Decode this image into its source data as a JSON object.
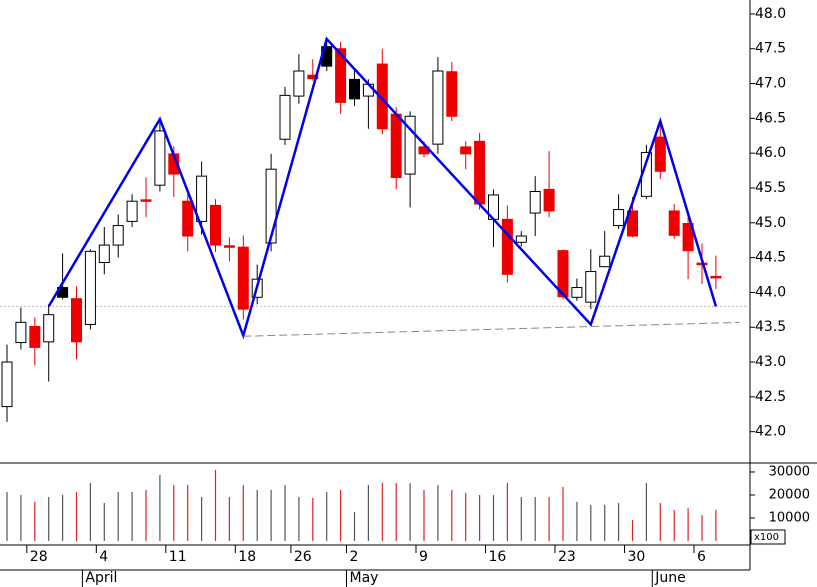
{
  "chart_data": {
    "type": "candlestick",
    "categories": [
      null,
      null,
      "28",
      null,
      null,
      null,
      null,
      "4",
      null,
      null,
      null,
      null,
      "11",
      null,
      null,
      null,
      null,
      "18",
      null,
      null,
      null,
      "26",
      null,
      null,
      null,
      "2",
      null,
      null,
      null,
      null,
      "9",
      null,
      null,
      null,
      null,
      "16",
      null,
      null,
      null,
      null,
      "23",
      null,
      null,
      null,
      null,
      "30",
      null,
      null,
      null,
      null,
      "6",
      null
    ],
    "months": [
      null,
      null,
      null,
      null,
      null,
      null,
      "April",
      null,
      null,
      null,
      null,
      null,
      null,
      null,
      null,
      null,
      null,
      null,
      null,
      null,
      null,
      null,
      null,
      null,
      null,
      "May",
      null,
      null,
      null,
      null,
      null,
      null,
      null,
      null,
      null,
      null,
      null,
      null,
      null,
      null,
      null,
      null,
      null,
      null,
      null,
      null,
      null,
      "June",
      null,
      null,
      null,
      null
    ],
    "open": [
      42.36,
      43.28,
      43.51,
      43.29,
      43.93,
      43.91,
      43.54,
      44.43,
      44.68,
      45.02,
      45.33,
      45.54,
      45.99,
      45.31,
      45.02,
      45.25,
      44.67,
      44.65,
      43.93,
      44.71,
      46.2,
      46.82,
      47.12,
      47.25,
      47.5,
      46.78,
      46.82,
      47.28,
      46.56,
      45.7,
      46.09,
      46.13,
      47.17,
      46.09,
      46.17,
      45.05,
      45.05,
      44.72,
      45.14,
      45.48,
      44.6,
      43.93,
      43.86,
      44.37,
      44.96,
      45.17,
      45.38,
      46.23,
      45.17,
      44.99,
      44.42,
      44.23
    ],
    "high": [
      43.25,
      43.78,
      43.64,
      43.83,
      44.56,
      44.09,
      44.62,
      44.94,
      45.12,
      45.41,
      45.65,
      46.49,
      46.1,
      45.41,
      45.88,
      45.34,
      44.79,
      44.82,
      44.4,
      45.99,
      46.95,
      47.42,
      47.35,
      47.64,
      47.6,
      47.18,
      47.06,
      47.5,
      46.66,
      46.6,
      46.17,
      47.38,
      47.31,
      46.17,
      46.29,
      45.48,
      45.25,
      44.88,
      45.67,
      46.03,
      44.62,
      44.2,
      44.62,
      44.88,
      45.41,
      45.37,
      46.12,
      46.42,
      45.27,
      45.08,
      44.7,
      44.53
    ],
    "low": [
      42.14,
      43.18,
      42.95,
      42.72,
      43.9,
      43.04,
      43.47,
      44.26,
      44.5,
      44.94,
      45.08,
      45.45,
      45.37,
      44.59,
      44.83,
      44.58,
      44.45,
      43.61,
      43.83,
      44.59,
      46.12,
      46.71,
      47.04,
      47.18,
      46.56,
      46.68,
      46.35,
      46.27,
      45.48,
      45.22,
      45.94,
      45.99,
      46.46,
      45.77,
      45.19,
      44.65,
      44.14,
      44.66,
      44.81,
      45.08,
      43.9,
      43.88,
      43.76,
      44.36,
      44.91,
      44.79,
      45.34,
      45.63,
      44.77,
      44.19,
      44.12,
      44.05
    ],
    "close": [
      43.0,
      43.57,
      43.21,
      43.68,
      44.07,
      43.29,
      44.59,
      44.68,
      44.96,
      45.31,
      45.32,
      46.32,
      45.7,
      44.81,
      45.67,
      44.68,
      44.66,
      43.76,
      44.19,
      45.77,
      46.83,
      47.18,
      47.07,
      47.53,
      46.73,
      47.06,
      46.99,
      46.35,
      45.65,
      46.53,
      45.99,
      47.18,
      46.53,
      45.99,
      45.27,
      45.4,
      44.26,
      44.81,
      45.45,
      45.17,
      43.94,
      44.07,
      44.3,
      44.52,
      45.19,
      44.81,
      46.01,
      45.74,
      44.82,
      44.6,
      44.4,
      44.21
    ],
    "fills": [
      "#ffffff",
      "#ffffff",
      "#ee0000",
      "#ffffff",
      "#000000",
      "#ee0000",
      "#ffffff",
      "#ffffff",
      "#ffffff",
      "#ffffff",
      "#ee0000",
      "#ffffff",
      "#ee0000",
      "#ee0000",
      "#ffffff",
      "#ee0000",
      "#ee0000",
      "#ee0000",
      "#ffffff",
      "#ffffff",
      "#ffffff",
      "#ffffff",
      "#ee0000",
      "#000000",
      "#ee0000",
      "#000000",
      "#ffffff",
      "#ee0000",
      "#ee0000",
      "#ffffff",
      "#ee0000",
      "#ffffff",
      "#ee0000",
      "#ee0000",
      "#ee0000",
      "#ffffff",
      "#ee0000",
      "#ffffff",
      "#ffffff",
      "#ee0000",
      "#ee0000",
      "#ffffff",
      "#ffffff",
      "#ffffff",
      "#ffffff",
      "#ee0000",
      "#ffffff",
      "#ee0000",
      "#ee0000",
      "#ee0000",
      "#ee0000",
      "#ee0000"
    ],
    "ylim": [
      41.55,
      48.2
    ],
    "yticks": [
      {
        "value": 42,
        "label": "42.0"
      },
      42.5,
      {
        "value": 43,
        "label": "43.0"
      },
      43.5,
      {
        "value": 44,
        "label": "44.0"
      },
      44.5,
      {
        "value": 45,
        "label": "45.0"
      },
      45.5,
      {
        "value": 46,
        "label": "46.0"
      },
      46.5,
      {
        "value": 47,
        "label": "47.0"
      },
      47.5,
      {
        "value": 48,
        "label": "48.0"
      }
    ],
    "reference_line": 43.8,
    "overlays": [
      {
        "color": "#0000ee",
        "dashed": false,
        "x": [
          3,
          11,
          17,
          23,
          42,
          47,
          51
        ],
        "values": [
          43.8,
          46.49,
          43.38,
          47.64,
          43.54,
          46.46,
          43.8
        ]
      },
      {
        "color": "#888888",
        "dashed": true,
        "x": [
          17,
          52.7
        ],
        "values": [
          43.37,
          43.57
        ]
      }
    ],
    "volume": {
      "values": [
        21300,
        20000,
        17000,
        19100,
        20000,
        21300,
        25200,
        16500,
        21300,
        21300,
        22200,
        28700,
        24300,
        24300,
        19100,
        30900,
        19100,
        24300,
        22200,
        22200,
        24300,
        19100,
        18700,
        21300,
        22200,
        12600,
        24300,
        25200,
        25200,
        25200,
        22200,
        24300,
        22200,
        20900,
        20000,
        20000,
        25200,
        19100,
        19100,
        19100,
        23500,
        17000,
        15700,
        15700,
        16500,
        9100,
        25200,
        16500,
        13500,
        14300,
        11300,
        13500
      ],
      "ylim": [
        0,
        33900
      ],
      "yticks": [
        10000,
        20000,
        30000
      ],
      "unit_label": "x100"
    }
  }
}
